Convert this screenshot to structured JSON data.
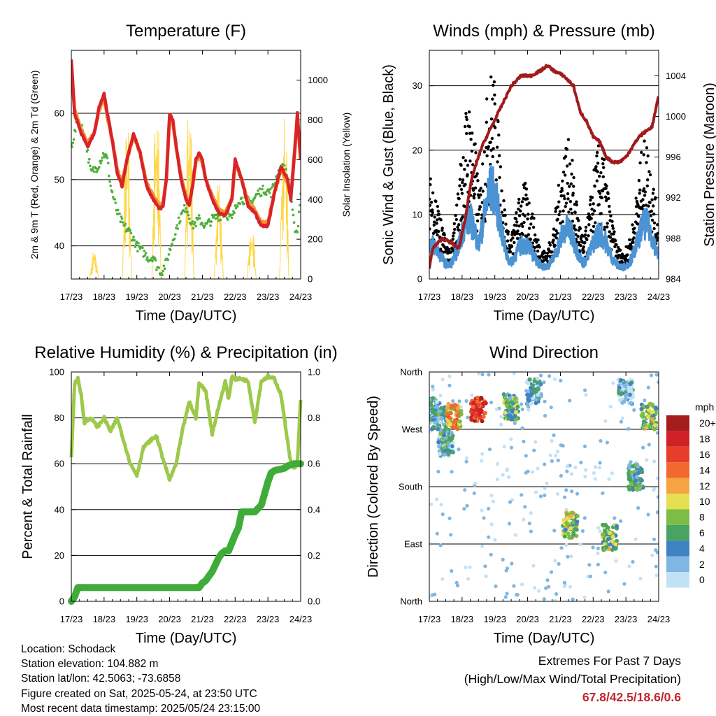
{
  "colors": {
    "temp_2m": "#d9232a",
    "temp_9m": "#f39431",
    "dewpoint": "#4fae3b",
    "solar": "#ffd84a",
    "wind_gust": "#000000",
    "wind_sonic": "#4b93d3",
    "pressure": "#a01b1e",
    "rh": "#9cc94a",
    "precip": "#3fac3a",
    "extremes_text": "#c0272d"
  },
  "chart_data": [
    {
      "type": "line",
      "title": "Temperature (F)",
      "xlabel": "Time (Day/UTC)",
      "ylabel_left": "2m & 9m T (Red, Orange) & 2m Td (Green)",
      "ylabel_right": "Solar Insolation (Yellow)",
      "x_ticks": [
        "17/23",
        "18/23",
        "19/23",
        "20/23",
        "21/23",
        "22/23",
        "23/23",
        "24/23"
      ],
      "y_ticks_left": [
        "40",
        "50",
        "60"
      ],
      "y_ticks_right": [
        "0",
        "200",
        "400",
        "600",
        "800",
        "1000"
      ],
      "ylim_left": [
        35,
        69.5
      ],
      "ylim_right": [
        0,
        1150
      ],
      "xlim_days": [
        0,
        7
      ],
      "grid": "horizontal at left ticks",
      "series": [
        {
          "name": "2m T",
          "x": [
            0,
            0.1,
            0.3,
            0.5,
            0.7,
            0.85,
            1.0,
            1.1,
            1.25,
            1.4,
            1.55,
            1.7,
            1.9,
            2.1,
            2.3,
            2.5,
            2.7,
            2.8,
            2.9,
            3.0,
            3.1,
            3.2,
            3.35,
            3.5,
            3.6,
            3.7,
            3.8,
            3.9,
            4.0,
            4.1,
            4.3,
            4.5,
            4.7,
            4.9,
            5.0,
            5.2,
            5.4,
            5.6,
            5.8,
            6.0,
            6.2,
            6.4,
            6.6,
            6.7,
            6.8,
            6.9,
            7.0
          ],
          "y": [
            68,
            60,
            57,
            55,
            57,
            61,
            63,
            60,
            56,
            51,
            49,
            53,
            57,
            54,
            49,
            47,
            45.5,
            46,
            50,
            60,
            59,
            55,
            50,
            47,
            46,
            49,
            53,
            54,
            53,
            50,
            47,
            45,
            44.5,
            47,
            53,
            50,
            46,
            45,
            43,
            43,
            48,
            52,
            50,
            47,
            53,
            60,
            53
          ]
        },
        {
          "name": "9m T",
          "x": [
            0,
            0.1,
            0.3,
            0.5,
            0.7,
            0.85,
            1.0,
            1.1,
            1.25,
            1.4,
            1.55,
            1.7,
            1.9,
            2.1,
            2.3,
            2.5,
            2.7,
            2.8,
            2.9,
            3.0,
            3.1,
            3.2,
            3.35,
            3.5,
            3.6,
            3.7,
            3.8,
            3.9,
            4.0,
            4.1,
            4.3,
            4.5,
            4.7,
            4.9,
            5.0,
            5.2,
            5.4,
            5.6,
            5.8,
            6.0,
            6.2,
            6.4,
            6.6,
            6.7,
            6.8,
            6.9,
            7.0
          ],
          "y": [
            67.5,
            60.5,
            57.5,
            55.5,
            57,
            60.5,
            62.5,
            59.5,
            56,
            51.5,
            49.5,
            53,
            56.5,
            54,
            49.5,
            47.5,
            46,
            46.5,
            50,
            59.5,
            58.5,
            55,
            50.5,
            47.5,
            46.5,
            49,
            52.5,
            53.5,
            52.5,
            50,
            47.5,
            45.5,
            45,
            47,
            52.5,
            50,
            46.5,
            45.5,
            43.5,
            43.5,
            48,
            51.5,
            49.5,
            47.5,
            53.5,
            59.5,
            53
          ]
        },
        {
          "name": "2m Td",
          "x": [
            0,
            0.2,
            0.4,
            0.6,
            0.8,
            1.0,
            1.1,
            1.2,
            1.4,
            1.6,
            1.8,
            2.0,
            2.2,
            2.4,
            2.5,
            2.6,
            2.75,
            2.9,
            3.1,
            3.3,
            3.5,
            3.7,
            3.9,
            4.1,
            4.3,
            4.5,
            4.7,
            4.9,
            5.1,
            5.3,
            5.5,
            5.7,
            5.9,
            6.1,
            6.3,
            6.5,
            6.6,
            6.7,
            6.8,
            6.9,
            7.0
          ],
          "y": [
            55,
            59,
            57,
            51,
            52,
            54,
            53,
            49,
            45,
            43,
            42,
            40,
            39,
            38,
            38.5,
            37,
            36,
            37.5,
            41,
            44,
            46,
            43,
            44,
            43,
            44,
            44.5,
            45,
            44,
            47,
            47,
            46.5,
            48,
            48.5,
            48,
            51,
            52,
            50,
            47,
            43,
            42,
            48
          ]
        },
        {
          "name": "Solar Insolation",
          "peaks_x": [
            0.7,
            1.7,
            2.6,
            3.6,
            4.5,
            5.5,
            6.5
          ],
          "peaks_y": [
            160,
            880,
            1120,
            1050,
            580,
            330,
            1050
          ]
        }
      ]
    },
    {
      "type": "scatter",
      "title": "Winds (mph) & Pressure (mb)",
      "xlabel": "Time (Day/UTC)",
      "ylabel_left": "Sonic Wind & Gust (Blue, Black)",
      "ylabel_right": "Station Pressure (Maroon)",
      "x_ticks": [
        "17/23",
        "18/23",
        "19/23",
        "20/23",
        "21/23",
        "22/23",
        "23/23",
        "24/23"
      ],
      "y_ticks_left": [
        "0",
        "10",
        "20",
        "30"
      ],
      "y_ticks_right": [
        "984",
        "988",
        "992",
        "996",
        "1000",
        "1004"
      ],
      "ylim_left": [
        0,
        35.5
      ],
      "ylim_right": [
        984,
        1006.5
      ],
      "xlim_days": [
        0,
        7
      ],
      "grid": "horizontal at left ticks",
      "series": [
        {
          "name": "Gust",
          "peaks_x": [
            0.05,
            1.2,
            1.9,
            2.9,
            4.2,
            5.2,
            6.6
          ],
          "peaks_y": [
            16,
            28,
            33,
            15,
            22,
            21,
            22
          ]
        },
        {
          "name": "Sonic Wind",
          "peaks_x": [
            0.05,
            1.2,
            1.9,
            2.9,
            4.2,
            5.2,
            6.6
          ],
          "peaks_y": [
            7,
            12,
            18,
            7,
            10,
            9,
            11
          ]
        },
        {
          "name": "Station Pressure",
          "x": [
            0,
            0.1,
            0.4,
            0.7,
            0.9,
            1.1,
            1.3,
            1.6,
            1.9,
            2.2,
            2.5,
            2.8,
            3.1,
            3.4,
            3.6,
            3.8,
            4.1,
            4.4,
            4.6,
            4.8,
            5.0,
            5.2,
            5.4,
            5.6,
            5.8,
            6.0,
            6.2,
            6.4,
            6.6,
            6.8,
            7.0
          ],
          "y": [
            985,
            987,
            988,
            987.5,
            987,
            990,
            994,
            997,
            999,
            1001,
            1003,
            1004,
            1004,
            1004.5,
            1005,
            1004.5,
            1004,
            1003,
            1000.5,
            999.5,
            998,
            997.5,
            996,
            995.5,
            995.5,
            996,
            997,
            998,
            998.5,
            999,
            1002
          ]
        }
      ]
    },
    {
      "type": "line",
      "title": "Relative Humidity (%) & Precipitation (in)",
      "xlabel": "Time (Day/UTC)",
      "ylabel_left": "Percent & Total Rainfall",
      "x_ticks": [
        "17/23",
        "18/23",
        "19/23",
        "20/23",
        "21/23",
        "22/23",
        "23/23",
        "24/23"
      ],
      "y_ticks_left": [
        "0",
        "20",
        "40",
        "60",
        "80",
        "100"
      ],
      "y_ticks_right": [
        "0.0",
        "0.2",
        "0.4",
        "0.6",
        "0.8",
        "1.0"
      ],
      "ylim_left": [
        0,
        100
      ],
      "ylim_right": [
        0,
        1.0
      ],
      "xlim_days": [
        0,
        7
      ],
      "grid": "horizontal at left ticks",
      "series": [
        {
          "name": "Relative Humidity",
          "x": [
            0,
            0.1,
            0.2,
            0.3,
            0.4,
            0.6,
            0.8,
            1.0,
            1.2,
            1.4,
            1.6,
            1.8,
            2.0,
            2.2,
            2.4,
            2.6,
            2.8,
            3.0,
            3.2,
            3.4,
            3.6,
            3.8,
            3.9,
            4.1,
            4.3,
            4.5,
            4.7,
            4.8,
            4.9,
            5.0,
            5.2,
            5.4,
            5.6,
            5.8,
            6.0,
            6.2,
            6.4,
            6.6,
            6.7,
            6.8,
            6.9,
            7.0
          ],
          "y": [
            63,
            95,
            97,
            90,
            78,
            80,
            76,
            80,
            74,
            80,
            70,
            60,
            55,
            67,
            70,
            72,
            62,
            53,
            60,
            75,
            87,
            80,
            95,
            92,
            73,
            85,
            96,
            88,
            98,
            97,
            97,
            96,
            78,
            96,
            98,
            97,
            90,
            70,
            60,
            58,
            60,
            88
          ]
        },
        {
          "name": "Total Precipitation",
          "x": [
            0,
            0.1,
            0.2,
            0.4,
            2.0,
            3.5,
            3.9,
            4.0,
            4.1,
            4.2,
            4.3,
            4.4,
            4.5,
            4.6,
            4.7,
            4.8,
            5.0,
            5.1,
            5.2,
            5.6,
            5.8,
            5.9,
            6.0,
            6.1,
            6.2,
            6.5,
            6.6,
            6.8,
            7.0
          ],
          "y": [
            0,
            0.02,
            0.06,
            0.06,
            0.06,
            0.06,
            0.06,
            0.08,
            0.09,
            0.11,
            0.13,
            0.16,
            0.19,
            0.21,
            0.22,
            0.22,
            0.29,
            0.32,
            0.39,
            0.39,
            0.42,
            0.47,
            0.52,
            0.56,
            0.57,
            0.58,
            0.59,
            0.6,
            0.6
          ]
        }
      ]
    },
    {
      "type": "scatter",
      "title": "Wind Direction",
      "xlabel": "Time (Day/UTC)",
      "ylabel": "Direction (Colored By Speed)",
      "x_ticks": [
        "17/23",
        "18/23",
        "19/23",
        "20/23",
        "21/23",
        "22/23",
        "23/23",
        "24/23"
      ],
      "y_ticks": [
        "North",
        "East",
        "South",
        "West",
        "North"
      ],
      "ylim_deg": [
        0,
        360
      ],
      "xlim_days": [
        0,
        7
      ],
      "grid": "horizontal at direction ticks",
      "legend": {
        "title": "mph",
        "placement": "right",
        "labels": [
          "20+",
          "18",
          "16",
          "14",
          "12",
          "10",
          "8",
          "6",
          "4",
          "2",
          "0"
        ],
        "colors": [
          "#a51c1f",
          "#cf2127",
          "#e63e2a",
          "#f2682e",
          "#f5a343",
          "#e6df52",
          "#7dbd45",
          "#49a463",
          "#3f82c3",
          "#7fb6e2",
          "#c3e1f5"
        ]
      },
      "clusters": [
        {
          "x": 0.1,
          "dir": 300,
          "speed": 4
        },
        {
          "x": 0.3,
          "dir": 285,
          "speed": 5
        },
        {
          "x": 0.5,
          "dir": 250,
          "speed": 5
        },
        {
          "x": 0.75,
          "dir": 290,
          "speed": 13
        },
        {
          "x": 1.5,
          "dir": 300,
          "speed": 18
        },
        {
          "x": 2.5,
          "dir": 305,
          "speed": 7
        },
        {
          "x": 3.2,
          "dir": 330,
          "speed": 4
        },
        {
          "x": 4.3,
          "dir": 120,
          "speed": 9
        },
        {
          "x": 5.5,
          "dir": 100,
          "speed": 9
        },
        {
          "x": 6.0,
          "dir": 330,
          "speed": 3
        },
        {
          "x": 6.3,
          "dir": 195,
          "speed": 6
        },
        {
          "x": 6.7,
          "dir": 290,
          "speed": 9
        }
      ]
    }
  ],
  "info": {
    "location": "Location: Schodack",
    "elevation": "Station elevation: 104.882 m",
    "latlon": "Station lat/lon: 42.5063; -73.6858",
    "created": "Figure created on Sat, 2025-05-24, at 23:50 UTC",
    "recent": "Most recent data timestamp: 2025/05/24 23:15:00"
  },
  "extremes": {
    "line1": "Extremes For Past 7 Days",
    "line2": "(High/Low/Max Wind/Total Precipitation)",
    "values": "67.8/42.5/18.6/0.6"
  }
}
